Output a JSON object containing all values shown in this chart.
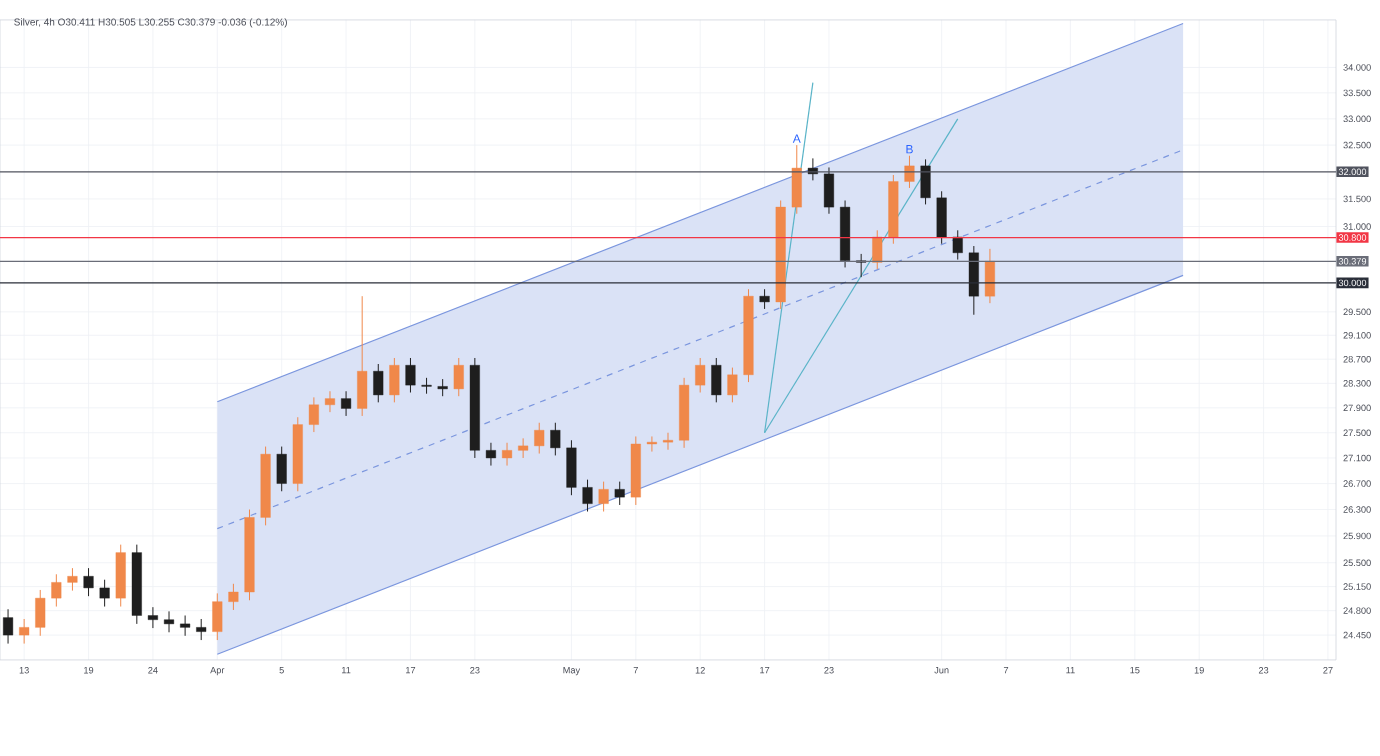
{
  "chart_data": {
    "type": "candlestick",
    "title": "Silver, 4h O30.411 H30.505 L30.255 C30.379 -0.036 (-0.12%)",
    "categories": [
      null,
      "13",
      null,
      null,
      null,
      "19",
      null,
      null,
      null,
      "24",
      null,
      null,
      null,
      "Apr",
      null,
      null,
      null,
      "5",
      null,
      null,
      null,
      "11",
      null,
      null,
      null,
      "17",
      null,
      null,
      null,
      "23",
      null,
      null,
      null,
      null,
      null,
      "May",
      null,
      null,
      null,
      "7",
      null,
      null,
      null,
      "12",
      null,
      null,
      null,
      "17",
      null,
      null,
      null,
      "23",
      null,
      null,
      null,
      null,
      null,
      null,
      "Jun",
      null,
      null,
      null,
      "7",
      null,
      null,
      null,
      "11",
      null,
      null,
      null,
      "15",
      null,
      null,
      null,
      "19",
      null,
      null,
      null,
      "23",
      null,
      null,
      null,
      "27"
    ],
    "ohlc": [
      [
        24.7,
        24.82,
        24.33,
        24.45
      ],
      [
        24.45,
        24.68,
        24.33,
        24.56
      ],
      [
        24.56,
        25.1,
        24.44,
        24.98
      ],
      [
        24.98,
        25.33,
        24.86,
        25.21
      ],
      [
        25.21,
        25.42,
        25.09,
        25.3
      ],
      [
        25.3,
        25.42,
        25.01,
        25.13
      ],
      [
        25.13,
        25.25,
        24.86,
        24.98
      ],
      [
        24.98,
        25.77,
        24.86,
        25.65
      ],
      [
        25.65,
        25.77,
        24.61,
        24.73
      ],
      [
        24.73,
        24.85,
        24.55,
        24.67
      ],
      [
        24.67,
        24.79,
        24.49,
        24.61
      ],
      [
        24.61,
        24.73,
        24.44,
        24.56
      ],
      [
        24.56,
        24.68,
        24.38,
        24.5
      ],
      [
        24.5,
        25.05,
        24.38,
        24.93
      ],
      [
        24.93,
        25.19,
        24.81,
        25.07
      ],
      [
        25.07,
        26.3,
        24.95,
        26.18
      ],
      [
        26.18,
        27.28,
        26.06,
        27.16
      ],
      [
        27.16,
        27.28,
        26.58,
        26.7
      ],
      [
        26.7,
        27.75,
        26.58,
        27.63
      ],
      [
        27.63,
        28.07,
        27.51,
        27.95
      ],
      [
        27.95,
        28.17,
        27.83,
        28.05
      ],
      [
        28.05,
        28.17,
        27.77,
        27.89
      ],
      [
        27.89,
        29.77,
        27.77,
        28.5
      ],
      [
        28.5,
        28.62,
        27.99,
        28.11
      ],
      [
        28.11,
        28.72,
        27.99,
        28.6
      ],
      [
        28.6,
        28.72,
        28.15,
        28.27
      ],
      [
        28.27,
        28.39,
        28.13,
        28.25
      ],
      [
        28.25,
        28.37,
        28.09,
        28.21
      ],
      [
        28.21,
        28.72,
        28.09,
        28.6
      ],
      [
        28.6,
        28.72,
        27.1,
        27.22
      ],
      [
        27.22,
        27.34,
        26.98,
        27.1
      ],
      [
        27.1,
        27.34,
        26.98,
        27.22
      ],
      [
        27.22,
        27.41,
        27.1,
        27.29
      ],
      [
        27.29,
        27.66,
        27.17,
        27.54
      ],
      [
        27.54,
        27.66,
        27.14,
        27.26
      ],
      [
        27.26,
        27.38,
        26.52,
        26.64
      ],
      [
        26.64,
        26.76,
        26.27,
        26.39
      ],
      [
        26.39,
        26.73,
        26.27,
        26.61
      ],
      [
        26.61,
        26.73,
        26.37,
        26.49
      ],
      [
        26.49,
        27.44,
        26.37,
        27.32
      ],
      [
        27.32,
        27.44,
        27.2,
        27.35
      ],
      [
        27.35,
        27.5,
        27.23,
        27.38
      ],
      [
        27.38,
        28.39,
        27.26,
        28.27
      ],
      [
        28.27,
        28.72,
        28.15,
        28.6
      ],
      [
        28.6,
        28.72,
        27.99,
        28.11
      ],
      [
        28.11,
        28.56,
        27.99,
        28.44
      ],
      [
        28.44,
        29.89,
        28.32,
        29.77
      ],
      [
        29.77,
        29.89,
        29.55,
        29.67
      ],
      [
        29.67,
        31.47,
        29.55,
        31.35
      ],
      [
        31.35,
        32.5,
        31.23,
        32.07
      ],
      [
        32.07,
        32.25,
        31.84,
        31.96
      ],
      [
        31.96,
        32.08,
        31.23,
        31.35
      ],
      [
        31.35,
        31.47,
        30.27,
        30.39
      ],
      [
        30.39,
        30.51,
        30.1,
        30.36
      ],
      [
        30.36,
        30.93,
        30.24,
        30.81
      ],
      [
        30.81,
        31.94,
        30.69,
        31.82
      ],
      [
        31.82,
        32.3,
        31.7,
        32.11
      ],
      [
        32.11,
        32.23,
        31.4,
        31.52
      ],
      [
        31.52,
        31.64,
        30.69,
        30.81
      ],
      [
        30.81,
        30.93,
        30.41,
        30.53
      ],
      [
        30.53,
        30.65,
        29.45,
        29.77
      ],
      [
        29.77,
        30.6,
        29.65,
        30.38
      ],
      null,
      null,
      null,
      null,
      null,
      null,
      null,
      null,
      null,
      null,
      null,
      null,
      null,
      null,
      null,
      null,
      null,
      null,
      null,
      null,
      null
    ],
    "colors": [
      "#1e1e1e",
      "#f0884a",
      "#f0884a",
      "#f0884a",
      "#f0884a",
      "#1e1e1e",
      "#1e1e1e",
      "#f0884a",
      "#1e1e1e",
      "#1e1e1e",
      "#1e1e1e",
      "#1e1e1e",
      "#1e1e1e",
      "#f0884a",
      "#f0884a",
      "#f0884a",
      "#f0884a",
      "#1e1e1e",
      "#f0884a",
      "#f0884a",
      "#f0884a",
      "#1e1e1e",
      "#f0884a",
      "#1e1e1e",
      "#f0884a",
      "#1e1e1e",
      "#1e1e1e",
      "#1e1e1e",
      "#f0884a",
      "#1e1e1e",
      "#1e1e1e",
      "#f0884a",
      "#f0884a",
      "#f0884a",
      "#1e1e1e",
      "#1e1e1e",
      "#1e1e1e",
      "#f0884a",
      "#1e1e1e",
      "#f0884a",
      "#f0884a",
      "#f0884a",
      "#f0884a",
      "#f0884a",
      "#1e1e1e",
      "#f0884a",
      "#f0884a",
      "#1e1e1e",
      "#f0884a",
      "#f0884a",
      "#1e1e1e",
      "#1e1e1e",
      "#1e1e1e",
      "#1e1e1e",
      "#f0884a",
      "#f0884a",
      "#f0884a",
      "#1e1e1e",
      "#1e1e1e",
      "#1e1e1e",
      "#1e1e1e",
      "#f0884a",
      null,
      null,
      null,
      null,
      null,
      null,
      null,
      null,
      null,
      null,
      null,
      null,
      null,
      null,
      null,
      null,
      null,
      null,
      null,
      null,
      null
    ],
    "ylim": [
      24.1,
      34.95
    ],
    "yticks": [
      {
        "value": 34,
        "label": "34.000"
      },
      {
        "value": 33.5,
        "label": "33.500"
      },
      {
        "value": 33,
        "label": "33.000"
      },
      {
        "value": 32.5,
        "label": "32.500"
      },
      {
        "value": 31.5,
        "label": "31.500"
      },
      {
        "value": 31,
        "label": "31.000"
      },
      {
        "value": 29.5,
        "label": "29.500"
      },
      {
        "value": 29.1,
        "label": "29.100"
      },
      {
        "value": 28.7,
        "label": "28.700"
      },
      {
        "value": 28.3,
        "label": "28.300"
      },
      {
        "value": 27.9,
        "label": "27.900"
      },
      {
        "value": 27.5,
        "label": "27.500"
      },
      {
        "value": 27.1,
        "label": "27.100"
      },
      {
        "value": 26.7,
        "label": "26.700"
      },
      {
        "value": 26.3,
        "label": "26.300"
      },
      {
        "value": 25.9,
        "label": "25.900"
      },
      {
        "value": 25.5,
        "label": "25.500"
      },
      {
        "value": 25.15,
        "label": "25.150"
      },
      {
        "value": 24.8,
        "label": "24.800"
      },
      {
        "value": 24.45,
        "label": "24.450"
      }
    ],
    "log": "y",
    "grid": true,
    "series": [
      {
        "type": "line",
        "color": "#7b96de",
        "line_style": "dashed",
        "values": [
          null,
          null,
          null,
          null,
          null,
          null,
          null,
          null,
          null,
          null,
          null,
          null,
          null,
          26.01,
          null,
          null,
          null,
          null,
          null,
          null,
          null,
          null,
          null,
          null,
          null,
          null,
          null,
          null,
          null,
          null,
          null,
          null,
          null,
          null,
          null,
          null,
          null,
          null,
          null,
          null,
          null,
          null,
          null,
          null,
          null,
          null,
          null,
          null,
          null,
          null,
          null,
          null,
          null,
          null,
          null,
          null,
          null,
          null,
          null,
          null,
          null,
          null,
          null,
          null,
          null,
          null,
          null,
          null,
          null,
          null,
          null,
          null,
          null,
          32.41,
          null,
          null,
          null,
          null,
          null,
          null,
          null,
          null,
          null
        ],
        "lower": [
          null,
          null,
          null,
          null,
          null,
          null,
          null,
          null,
          null,
          null,
          null,
          null,
          null,
          24.18,
          null,
          null,
          null,
          null,
          null,
          null,
          null,
          null,
          null,
          null,
          null,
          null,
          null,
          null,
          null,
          null,
          null,
          null,
          null,
          null,
          null,
          null,
          null,
          null,
          null,
          null,
          null,
          null,
          null,
          null,
          null,
          null,
          null,
          null,
          null,
          null,
          null,
          null,
          null,
          null,
          null,
          null,
          null,
          null,
          null,
          null,
          null,
          null,
          null,
          null,
          null,
          null,
          null,
          null,
          null,
          null,
          null,
          null,
          null,
          30.13,
          null,
          null,
          null,
          null,
          null,
          null,
          null,
          null,
          null
        ],
        "upper": [
          null,
          null,
          null,
          null,
          null,
          null,
          null,
          null,
          null,
          null,
          null,
          null,
          null,
          28.0,
          null,
          null,
          null,
          null,
          null,
          null,
          null,
          null,
          null,
          null,
          null,
          null,
          null,
          null,
          null,
          null,
          null,
          null,
          null,
          null,
          null,
          null,
          null,
          null,
          null,
          null,
          null,
          null,
          null,
          null,
          null,
          null,
          null,
          null,
          null,
          null,
          null,
          null,
          null,
          null,
          null,
          null,
          null,
          null,
          null,
          null,
          null,
          null,
          null,
          null,
          null,
          null,
          null,
          null,
          null,
          null,
          null,
          null,
          null,
          34.88,
          null,
          null,
          null,
          null,
          null,
          null,
          null,
          null,
          null
        ]
      },
      {
        "type": "line",
        "color": "#7b96de",
        "line_style": "solid",
        "values": [
          null,
          null,
          null,
          null,
          null,
          null,
          null,
          null,
          null,
          null,
          null,
          null,
          null,
          24.18,
          null,
          null,
          null,
          null,
          null,
          null,
          null,
          null,
          null,
          null,
          null,
          null,
          null,
          null,
          null,
          null,
          null,
          null,
          null,
          null,
          null,
          null,
          null,
          null,
          null,
          null,
          null,
          null,
          null,
          null,
          null,
          null,
          null,
          null,
          null,
          null,
          null,
          null,
          null,
          null,
          null,
          null,
          null,
          null,
          null,
          null,
          null,
          null,
          null,
          null,
          null,
          null,
          null,
          null,
          null,
          null,
          null,
          null,
          null,
          30.13,
          null,
          null,
          null,
          null,
          null,
          null,
          null,
          null,
          null
        ]
      },
      {
        "type": "line",
        "color": "#7b96de",
        "line_style": "solid",
        "values": [
          null,
          null,
          null,
          null,
          null,
          null,
          null,
          null,
          null,
          null,
          null,
          null,
          null,
          28.0,
          null,
          null,
          null,
          null,
          null,
          null,
          null,
          null,
          null,
          null,
          null,
          null,
          null,
          null,
          null,
          null,
          null,
          null,
          null,
          null,
          null,
          null,
          null,
          null,
          null,
          null,
          null,
          null,
          null,
          null,
          null,
          null,
          null,
          null,
          null,
          null,
          null,
          null,
          null,
          null,
          null,
          null,
          null,
          null,
          null,
          null,
          null,
          null,
          null,
          null,
          null,
          null,
          null,
          null,
          null,
          null,
          null,
          null,
          null,
          34.88,
          null,
          null,
          null,
          null,
          null,
          null,
          null,
          null,
          null
        ]
      },
      {
        "type": "line",
        "color": "#5ab4c8",
        "line_style": "solid",
        "values": [
          null,
          null,
          null,
          null,
          null,
          null,
          null,
          null,
          null,
          null,
          null,
          null,
          null,
          null,
          null,
          null,
          null,
          null,
          null,
          null,
          null,
          null,
          null,
          null,
          null,
          null,
          null,
          null,
          null,
          null,
          null,
          null,
          null,
          null,
          null,
          null,
          null,
          null,
          null,
          null,
          null,
          null,
          null,
          null,
          null,
          null,
          null,
          27.5,
          null,
          null,
          33.7,
          null,
          null,
          null,
          null,
          null,
          null,
          null,
          null,
          null,
          null,
          null,
          null,
          null,
          null,
          null,
          null,
          null,
          null,
          null,
          null,
          null,
          null,
          null,
          null,
          null,
          null,
          null,
          null,
          null,
          null,
          null,
          null
        ]
      },
      {
        "type": "line",
        "color": "#5ab4c8",
        "line_style": "solid",
        "values": [
          null,
          null,
          null,
          null,
          null,
          null,
          null,
          null,
          null,
          null,
          null,
          null,
          null,
          null,
          null,
          null,
          null,
          null,
          null,
          null,
          null,
          null,
          null,
          null,
          null,
          null,
          null,
          null,
          null,
          null,
          null,
          null,
          null,
          null,
          null,
          null,
          null,
          null,
          null,
          null,
          null,
          null,
          null,
          null,
          null,
          null,
          null,
          27.5,
          null,
          null,
          null,
          null,
          null,
          null,
          null,
          null,
          null,
          null,
          null,
          33.0,
          null,
          null,
          null,
          null,
          null,
          null,
          null,
          null,
          null,
          null,
          null,
          null,
          null,
          null,
          null,
          null,
          null,
          null,
          null,
          null,
          null,
          null,
          null
        ]
      }
    ],
    "ref_lines": [
      {
        "axis": "y",
        "value": 32,
        "label": "32.000",
        "color": "#50535e"
      },
      {
        "axis": "y",
        "value": 30.8,
        "label": "30.800",
        "color": "#f23645"
      },
      {
        "axis": "y",
        "value": 30.379,
        "label": "30.379",
        "color": "#6a6d78"
      },
      {
        "axis": "y",
        "value": 30,
        "label": "30.000",
        "color": "#2a2e39"
      }
    ],
    "annotations": [
      {
        "text": "A",
        "y": 32.5
      },
      {
        "text": "B",
        "y": 32.3
      }
    ]
  }
}
